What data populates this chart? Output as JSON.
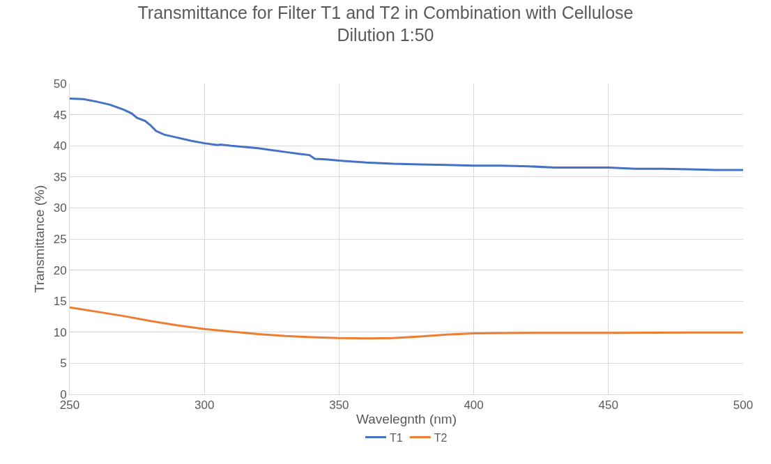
{
  "chart_data": {
    "type": "line",
    "title": "Transmittance for Filter T1 and T2 in Combination with Cellulose\nDilution 1:50",
    "xlabel": "Wavelegnth (nm)",
    "ylabel": "Transmittance (%)",
    "series": [
      {
        "name": "T1",
        "color": "#4472c4",
        "x": [
          250,
          255,
          260,
          265,
          270,
          273,
          275,
          278,
          280,
          282,
          285,
          290,
          295,
          300,
          305,
          306,
          310,
          315,
          320,
          325,
          330,
          335,
          339,
          341,
          345,
          350,
          360,
          370,
          380,
          390,
          400,
          410,
          420,
          430,
          440,
          450,
          460,
          470,
          480,
          490,
          500
        ],
        "values": [
          47.6,
          47.5,
          47.1,
          46.6,
          45.8,
          45.2,
          44.5,
          44.0,
          43.3,
          42.4,
          41.8,
          41.3,
          40.8,
          40.4,
          40.1,
          40.2,
          40.0,
          39.8,
          39.6,
          39.3,
          39.0,
          38.7,
          38.5,
          37.9,
          37.8,
          37.6,
          37.3,
          37.1,
          37.0,
          36.9,
          36.8,
          36.8,
          36.7,
          36.5,
          36.5,
          36.5,
          36.3,
          36.3,
          36.2,
          36.1,
          36.1
        ]
      },
      {
        "name": "T2",
        "color": "#ed7d31",
        "x": [
          250,
          260,
          270,
          280,
          290,
          300,
          310,
          320,
          330,
          340,
          350,
          360,
          370,
          380,
          390,
          400,
          420,
          450,
          480,
          500
        ],
        "values": [
          14.0,
          13.3,
          12.6,
          11.8,
          11.1,
          10.5,
          10.1,
          9.7,
          9.4,
          9.2,
          9.05,
          9.0,
          9.05,
          9.3,
          9.6,
          9.8,
          9.9,
          9.9,
          9.95,
          9.95
        ]
      }
    ],
    "xlim": [
      250,
      500
    ],
    "xticks": [
      250,
      300,
      350,
      400,
      450,
      500
    ],
    "ylim": [
      0,
      50
    ],
    "yticks": [
      0,
      5,
      10,
      15,
      20,
      25,
      30,
      35,
      40,
      45,
      50
    ],
    "grid": true,
    "legend": "bottom",
    "line_style": "solid",
    "marker": "none"
  }
}
